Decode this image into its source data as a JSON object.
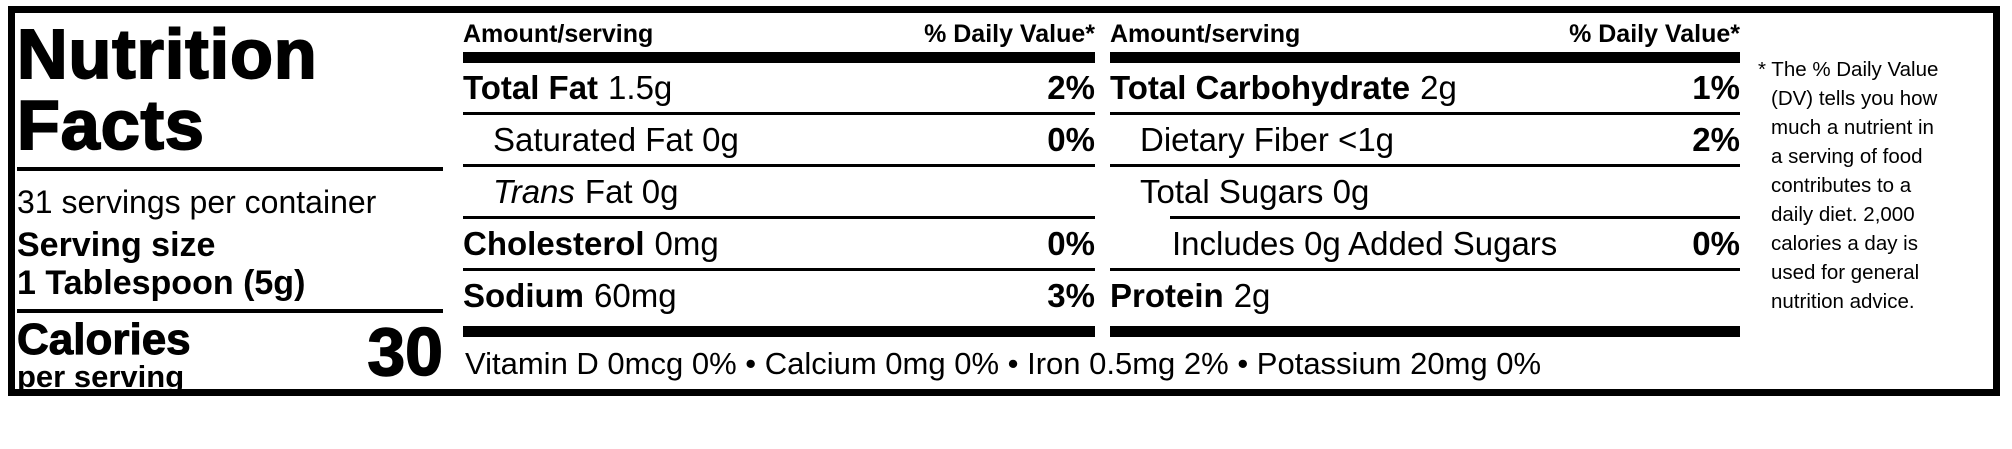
{
  "colors": {
    "text": "#000000",
    "background": "#ffffff"
  },
  "label": {
    "title_line1": "Nutrition",
    "title_line2": "Facts",
    "servings_per_container": "31 servings per container",
    "serving_size_label": "Serving size",
    "serving_size_value": "1 Tablespoon (5g)",
    "calories_label": "Calories",
    "calories_sublabel": "per serving",
    "calories_value": "30"
  },
  "columns": [
    {
      "header_left": "Amount/serving",
      "header_right": "% Daily Value*",
      "rows": [
        {
          "name": "Total Fat",
          "amount": "1.5g",
          "dv": "2%"
        },
        {
          "name": "Saturated Fat 0g",
          "amount": "",
          "dv": "0%"
        },
        {
          "name": "Trans",
          "amount": "Fat 0g",
          "dv": ""
        },
        {
          "name": "Cholesterol",
          "amount": "0mg",
          "dv": "0%"
        },
        {
          "name": "Sodium",
          "amount": "60mg",
          "dv": "3%"
        }
      ]
    },
    {
      "header_left": "Amount/serving",
      "header_right": "% Daily Value*",
      "rows": [
        {
          "name": "Total Carbohydrate",
          "amount": "2g",
          "dv": "1%"
        },
        {
          "name": "Dietary Fiber <1g",
          "amount": "",
          "dv": "2%"
        },
        {
          "name": "Total Sugars 0g",
          "amount": "",
          "dv": ""
        },
        {
          "name": "Includes 0g Added Sugars",
          "amount": "",
          "dv": "0%"
        },
        {
          "name": "Protein",
          "amount": "2g",
          "dv": ""
        }
      ]
    }
  ],
  "micronutrients": "Vitamin D 0mcg 0% • Calcium 0mg 0% • Iron 0.5mg 2% • Potassium 20mg 0%",
  "footnote_lines": [
    "* The % Daily Value",
    "(DV) tells you how",
    "much a nutrient in",
    "a serving of food",
    "contributes to a",
    "daily diet. 2,000",
    "calories a day is",
    "used for general",
    "nutrition advice."
  ]
}
